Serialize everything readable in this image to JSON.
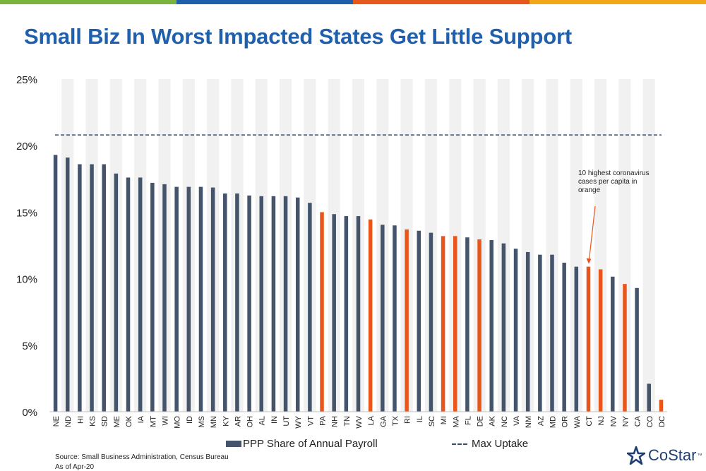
{
  "colors": {
    "top_bar": [
      "#7ab33e",
      "#1f5fac",
      "#e5591c",
      "#f2a71b"
    ],
    "title": "#1f5fac",
    "bar_default": "#44546a",
    "bar_highlight": "#e8561c",
    "max_line": "#3a4d6b",
    "stripe": "#f1f1f1",
    "annotation_arrow": "#e8561c"
  },
  "title": "Small Biz In Worst Impacted States Get Little Support",
  "chart_data": {
    "type": "bar",
    "categories": [
      "NE",
      "ND",
      "HI",
      "KS",
      "SD",
      "ME",
      "OK",
      "IA",
      "MT",
      "WI",
      "MO",
      "ID",
      "MS",
      "MN",
      "KY",
      "AR",
      "OH",
      "AL",
      "IN",
      "UT",
      "WY",
      "VT",
      "PA",
      "NH",
      "TN",
      "WV",
      "LA",
      "GA",
      "TX",
      "RI",
      "IL",
      "SC",
      "MI",
      "MA",
      "FL",
      "DE",
      "AK",
      "NC",
      "VA",
      "NM",
      "AZ",
      "MD",
      "OR",
      "WA",
      "CT",
      "NJ",
      "NV",
      "NY",
      "CA",
      "CO",
      "DC"
    ],
    "series": [
      {
        "name": "PPP Share of Annual Payroll",
        "values": [
          19.3,
          19.1,
          18.6,
          18.6,
          18.6,
          17.9,
          17.6,
          17.6,
          17.2,
          17.1,
          16.9,
          16.9,
          16.9,
          16.85,
          16.4,
          16.4,
          16.25,
          16.2,
          16.2,
          16.2,
          16.1,
          15.7,
          15.0,
          14.85,
          14.7,
          14.7,
          14.45,
          14.05,
          14.0,
          13.7,
          13.6,
          13.45,
          13.2,
          13.2,
          13.1,
          12.95,
          12.9,
          12.65,
          12.25,
          12.0,
          11.8,
          11.8,
          11.2,
          10.9,
          10.9,
          10.7,
          10.15,
          9.6,
          9.3,
          2.1,
          0.9
        ],
        "highlight": [
          false,
          false,
          false,
          false,
          false,
          false,
          false,
          false,
          false,
          false,
          false,
          false,
          false,
          false,
          false,
          false,
          false,
          false,
          false,
          false,
          false,
          false,
          true,
          false,
          false,
          false,
          true,
          false,
          false,
          true,
          false,
          false,
          true,
          true,
          false,
          true,
          false,
          false,
          false,
          false,
          false,
          false,
          false,
          false,
          true,
          true,
          false,
          true,
          false,
          false,
          true
        ]
      }
    ],
    "max_uptake": {
      "name": "Max Uptake",
      "value": 20.8
    },
    "ylim": [
      0,
      25
    ],
    "yticks": [
      0,
      5,
      10,
      15,
      20,
      25
    ],
    "ytick_labels": [
      "0%",
      "5%",
      "10%",
      "15%",
      "20%",
      "25%"
    ],
    "xlabel": "",
    "ylabel": "",
    "annotation": {
      "lines": [
        "10 highest coronavirus",
        "cases per capita in",
        "orange"
      ],
      "target_category": "CT"
    },
    "grid": false,
    "legend": "bottom"
  },
  "legend": {
    "bar_label": "PPP Share of Annual Payroll",
    "line_label": "Max Uptake"
  },
  "footer": {
    "source": "Source: Small Business Administration, Census Bureau",
    "as_of": "As of Apr-20"
  },
  "logo": {
    "text": "CoStar",
    "tm": "™"
  }
}
